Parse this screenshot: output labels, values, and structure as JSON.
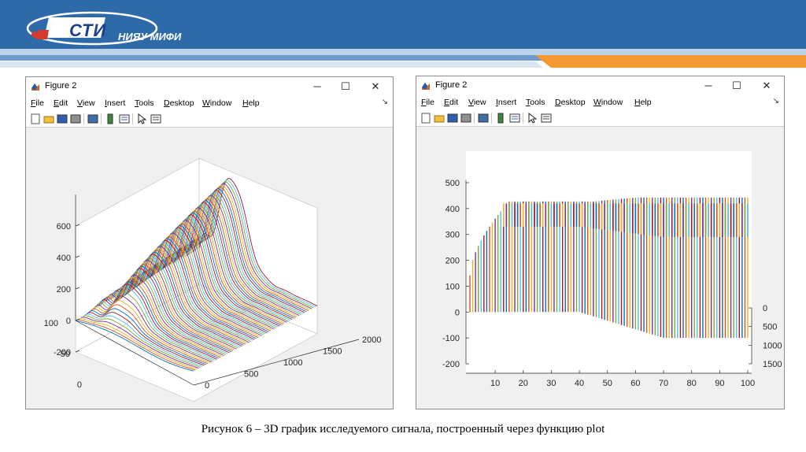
{
  "header": {
    "logo_sti": "СТИ",
    "logo_mifi": "НИЯУ МИФИ",
    "colors": {
      "blue": "#2e6aa8",
      "light_blue": "#bcd3ea",
      "orange": "#f39a33"
    }
  },
  "windows": [
    {
      "title": "Figure 2",
      "controls": [
        "─",
        "☐",
        "✕"
      ],
      "menu": [
        "File",
        "Edit",
        "View",
        "Insert",
        "Tools",
        "Desktop",
        "Window",
        "Help"
      ],
      "menu_arrow": "↘",
      "toolbar_icons": [
        "new-figure-icon",
        "open-file-icon",
        "save-icon",
        "print-icon",
        "print-preview-icon",
        "colorbar-icon",
        "legend-icon",
        "pointer-icon",
        "plot-browser-icon"
      ]
    },
    {
      "title": "Figure 2",
      "controls": [
        "─",
        "☐",
        "✕"
      ],
      "menu": [
        "File",
        "Edit",
        "View",
        "Insert",
        "Tools",
        "Desktop",
        "Window",
        "Help"
      ],
      "menu_arrow": "↘",
      "toolbar_icons": [
        "new-figure-icon",
        "open-file-icon",
        "save-icon",
        "print-icon",
        "print-preview-icon",
        "colorbar-icon",
        "legend-icon",
        "pointer-icon",
        "plot-browser-icon"
      ]
    }
  ],
  "chart_data": [
    {
      "type": "line",
      "view": "3d",
      "z_ticks": [
        "600",
        "400",
        "200",
        "0",
        "-200"
      ],
      "y_ticks": [
        "100",
        "50",
        "0"
      ],
      "x_ticks": [
        "0",
        "500",
        "1000",
        "1500",
        "2000"
      ],
      "zlim": [
        -200,
        600
      ],
      "grid": false
    },
    {
      "type": "line",
      "view": "3d-rotated",
      "x_ticks": [
        "10",
        "20",
        "30",
        "40",
        "50",
        "60",
        "70",
        "80",
        "90",
        "100"
      ],
      "z_ticks": [
        "500",
        "400",
        "300",
        "200",
        "100",
        "0",
        "-100",
        "-200"
      ],
      "depth_ticks": [
        "0",
        "500",
        "1000",
        "1500"
      ],
      "xlim": [
        1,
        100
      ],
      "zlim": [
        -200,
        500
      ],
      "grid": false
    }
  ],
  "caption": "Рисунок 6 – 3D график исследуемого сигнала, построенный через функцию plot"
}
